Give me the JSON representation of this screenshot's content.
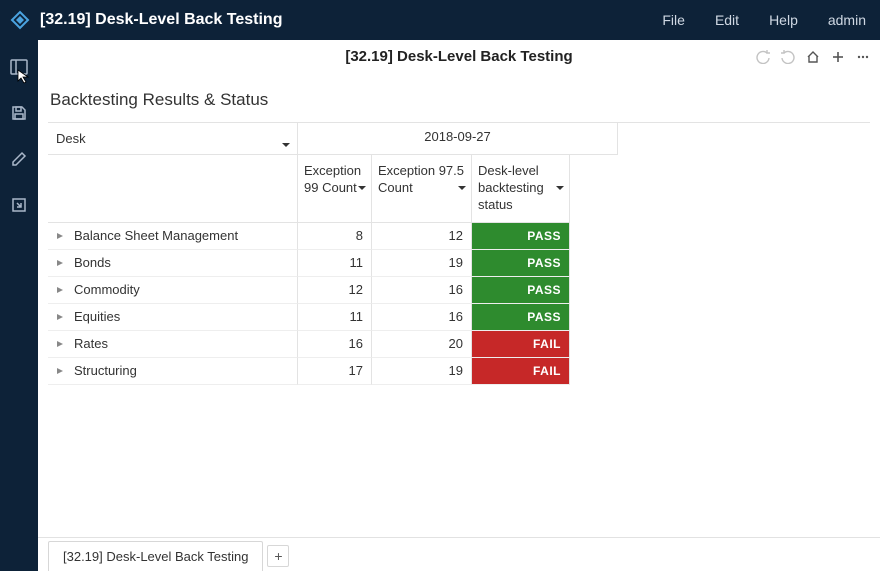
{
  "header": {
    "title": "[32.19] Desk-Level Back Testing",
    "menu": [
      "File",
      "Edit",
      "Help",
      "admin"
    ]
  },
  "page": {
    "title": "[32.19] Desk-Level Back Testing",
    "section_title": "Backtesting Results & Status"
  },
  "grid": {
    "dim_label": "Desk",
    "date": "2018-09-27",
    "columns": [
      {
        "label": "Exception 99 Count"
      },
      {
        "label": "Exception 97.5 Count"
      },
      {
        "label": "Desk-level backtesting status"
      }
    ],
    "rows": [
      {
        "label": "Balance Sheet Management",
        "c0": "8",
        "c1": "12",
        "status": "PASS",
        "status_kind": "pass"
      },
      {
        "label": "Bonds",
        "c0": "11",
        "c1": "19",
        "status": "PASS",
        "status_kind": "pass"
      },
      {
        "label": "Commodity",
        "c0": "12",
        "c1": "16",
        "status": "PASS",
        "status_kind": "pass"
      },
      {
        "label": "Equities",
        "c0": "11",
        "c1": "16",
        "status": "PASS",
        "status_kind": "pass"
      },
      {
        "label": "Rates",
        "c0": "16",
        "c1": "20",
        "status": "FAIL",
        "status_kind": "fail"
      },
      {
        "label": "Structuring",
        "c0": "17",
        "c1": "19",
        "status": "FAIL",
        "status_kind": "fail"
      }
    ]
  },
  "tabs": {
    "active": "[32.19] Desk-Level Back Testing"
  },
  "colors": {
    "navbg": "#0d2238",
    "pass": "#2e8b2e",
    "fail": "#c62828",
    "border": "#e3e3e3"
  }
}
